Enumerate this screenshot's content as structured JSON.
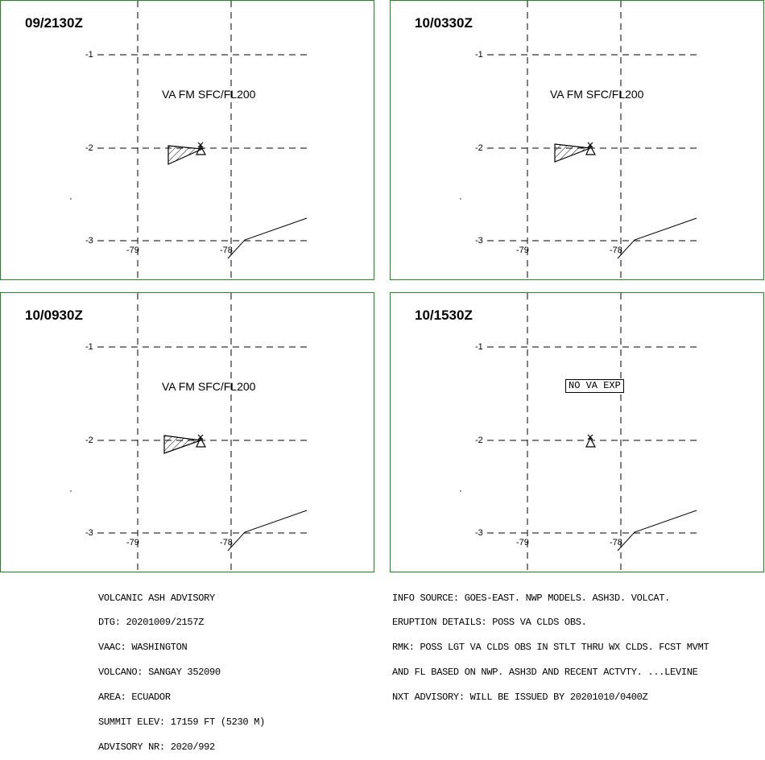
{
  "panels": [
    {
      "time": "09/2130Z",
      "label": "VA FM SFC/FL200",
      "label_type": "text"
    },
    {
      "time": "10/0330Z",
      "label": "VA FM SFC/FL200",
      "label_type": "text"
    },
    {
      "time": "10/0930Z",
      "label": "VA FM SFC/FL200",
      "label_type": "text"
    },
    {
      "time": "10/1530Z",
      "label": "NO VA EXP",
      "label_type": "boxed"
    }
  ],
  "axes": {
    "lat_labels": [
      "-1",
      "-2",
      "-3"
    ],
    "lon_labels": [
      "-79",
      "-78"
    ]
  },
  "advisory": {
    "line1": "VOLCANIC ASH ADVISORY",
    "dtg": "DTG: 20201009/2157Z",
    "vaac": "VAAC: WASHINGTON",
    "volcano": "VOLCANO: SANGAY 352090",
    "area": "AREA: ECUADOR",
    "summit": "SUMMIT ELEV: 17159 FT (5230 M)",
    "advisory_nr": "ADVISORY NR: 2020/992"
  },
  "details": {
    "info_source": "INFO SOURCE: GOES-EAST. NWP MODELS. ASH3D. VOLCAT.",
    "eruption": "ERUPTION DETAILS: POSS VA CLDS OBS.",
    "rmk1": "RMK: POSS LGT VA CLDS OBS IN STLT THRU WX CLDS. FCST MVMT",
    "rmk2": "AND FL BASED ON NWP. ASH3D AND RECENT ACTVTY. ...LEVINE",
    "next": "NXT ADVISORY: WILL BE ISSUED BY 20201010/0400Z"
  },
  "colors": {
    "border": "#1a8a1a",
    "lines": "#000000"
  }
}
